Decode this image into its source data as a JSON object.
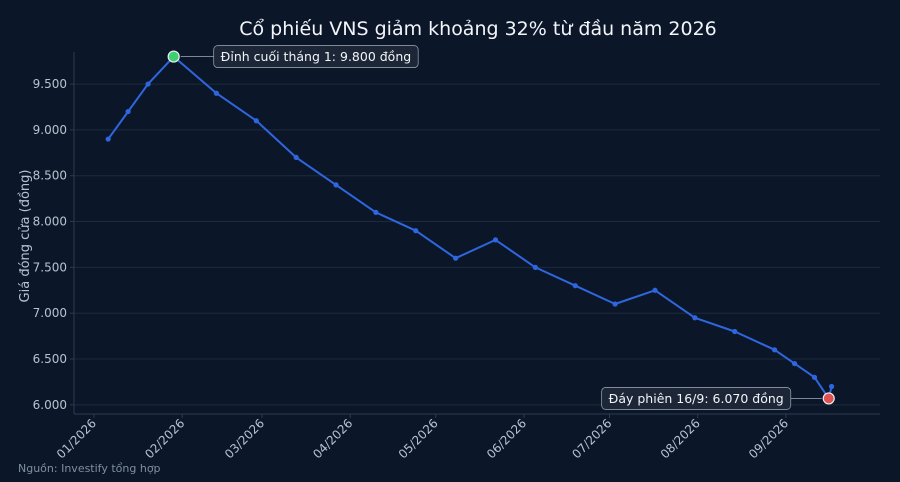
{
  "chart_data": {
    "type": "line",
    "title": "Cổ phiếu VNS giảm khoảng 32% từ đầu năm 2026",
    "ylabel": "Giá đóng cửa (đồng)",
    "xlabel": "",
    "source": "Nguồn: Investify tổng hợp",
    "ylim": [
      5900,
      9850
    ],
    "xlim": [
      "2025-12-25",
      "2026-10-04"
    ],
    "yticks": [
      6000,
      6500,
      7000,
      7500,
      8000,
      8500,
      9000,
      9500
    ],
    "ytick_labels": [
      "6.000",
      "6.500",
      "7.000",
      "7.500",
      "8.000",
      "8.500",
      "9.000",
      "9.500"
    ],
    "xticks": [
      "2026-01-01",
      "2026-02-01",
      "2026-03-01",
      "2026-04-01",
      "2026-05-01",
      "2026-06-01",
      "2026-07-01",
      "2026-08-01",
      "2026-09-01"
    ],
    "xtick_labels": [
      "01/2026",
      "02/2026",
      "03/2026",
      "04/2026",
      "05/2026",
      "06/2026",
      "07/2026",
      "08/2026",
      "09/2026"
    ],
    "grid": true,
    "line_color": "#2f66e0",
    "series": [
      {
        "x": [
          "2026-01-06",
          "2026-01-13",
          "2026-01-20",
          "2026-01-29",
          "2026-02-13",
          "2026-02-27",
          "2026-03-13",
          "2026-03-27",
          "2026-04-10",
          "2026-04-24",
          "2026-05-08",
          "2026-05-22",
          "2026-06-05",
          "2026-06-19",
          "2026-07-03",
          "2026-07-17",
          "2026-07-31",
          "2026-08-14",
          "2026-08-28",
          "2026-09-04",
          "2026-09-11",
          "2026-09-16",
          "2026-09-17"
        ],
        "values": [
          8900,
          9200,
          9500,
          9800,
          9400,
          9100,
          8700,
          8400,
          8100,
          7900,
          7600,
          7800,
          7500,
          7300,
          7100,
          7250,
          6950,
          6800,
          6600,
          6450,
          6300,
          6070,
          6200
        ]
      }
    ],
    "annotations": [
      {
        "x": "2026-01-29",
        "y": 9800,
        "text": "Đỉnh cuối tháng 1: 9.800 đồng",
        "marker_color": "#3ecf6e",
        "placement": "right"
      },
      {
        "x": "2026-09-16",
        "y": 6070,
        "text": "Đáy phiên 16/9: 6.070 đồng",
        "marker_color": "#e05252",
        "placement": "left"
      }
    ]
  }
}
